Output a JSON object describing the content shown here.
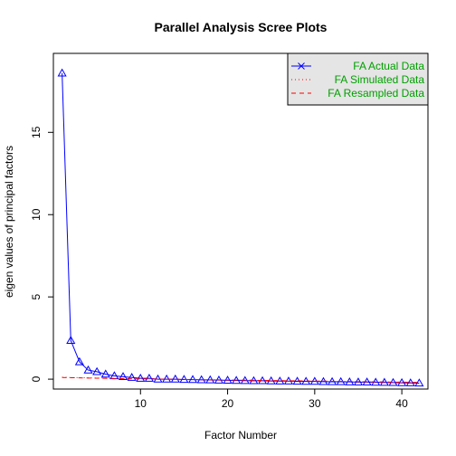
{
  "chart_data": {
    "type": "line",
    "title": "Parallel Analysis Scree Plots",
    "xlabel": "Factor Number",
    "ylabel": "eigen values of principal factors",
    "xlim": [
      0,
      43
    ],
    "ylim": [
      -0.6,
      19.8
    ],
    "x_ticks": [
      10,
      20,
      30,
      40
    ],
    "y_ticks": [
      0,
      5,
      10,
      15
    ],
    "grid": false,
    "legend_position": "top-right",
    "series": [
      {
        "name": "FA  Actual Data",
        "color": "#0000ff",
        "style": "solid-line-triangles",
        "x": [
          1,
          2,
          3,
          4,
          5,
          6,
          7,
          8,
          9,
          10,
          11,
          12,
          13,
          14,
          15,
          16,
          17,
          18,
          19,
          20,
          21,
          22,
          23,
          24,
          25,
          26,
          27,
          28,
          29,
          30,
          31,
          32,
          33,
          34,
          35,
          36,
          37,
          38,
          39,
          40,
          41,
          42
        ],
        "values": [
          18.6,
          2.35,
          1.05,
          0.55,
          0.45,
          0.3,
          0.2,
          0.15,
          0.1,
          0.05,
          0.05,
          0.0,
          0.0,
          0.0,
          -0.02,
          -0.03,
          -0.04,
          -0.05,
          -0.06,
          -0.07,
          -0.08,
          -0.09,
          -0.1,
          -0.1,
          -0.11,
          -0.12,
          -0.12,
          -0.13,
          -0.14,
          -0.14,
          -0.15,
          -0.16,
          -0.16,
          -0.17,
          -0.18,
          -0.18,
          -0.19,
          -0.2,
          -0.21,
          -0.22,
          -0.23,
          -0.24
        ]
      },
      {
        "name": "FA  Simulated Data",
        "color": "#ff0000",
        "style": "dotted",
        "x": [
          1,
          2,
          3,
          4,
          5,
          6,
          7,
          8,
          9,
          10,
          11,
          12,
          13,
          14,
          15,
          16,
          17,
          18,
          19,
          20,
          21,
          22,
          23,
          24,
          25,
          26,
          27,
          28,
          29,
          30,
          31,
          32,
          33,
          34,
          35,
          36,
          37,
          38,
          39,
          40,
          41,
          42
        ],
        "values": [
          0.12,
          0.1,
          0.09,
          0.08,
          0.07,
          0.06,
          0.05,
          0.04,
          0.03,
          0.02,
          0.02,
          0.01,
          0.0,
          -0.01,
          -0.01,
          -0.02,
          -0.03,
          -0.03,
          -0.04,
          -0.05,
          -0.05,
          -0.06,
          -0.07,
          -0.07,
          -0.08,
          -0.09,
          -0.09,
          -0.1,
          -0.11,
          -0.11,
          -0.12,
          -0.13,
          -0.13,
          -0.14,
          -0.15,
          -0.15,
          -0.16,
          -0.17,
          -0.17,
          -0.18,
          -0.19,
          -0.2
        ]
      },
      {
        "name": "FA  Resampled Data",
        "color": "#ff0000",
        "style": "dashed",
        "x": [
          1,
          2,
          3,
          4,
          5,
          6,
          7,
          8,
          9,
          10,
          11,
          12,
          13,
          14,
          15,
          16,
          17,
          18,
          19,
          20,
          21,
          22,
          23,
          24,
          25,
          26,
          27,
          28,
          29,
          30,
          31,
          32,
          33,
          34,
          35,
          36,
          37,
          38,
          39,
          40,
          41,
          42
        ],
        "values": [
          0.1,
          0.09,
          0.08,
          0.07,
          0.06,
          0.05,
          0.04,
          0.03,
          0.02,
          0.02,
          0.01,
          0.0,
          0.0,
          -0.01,
          -0.02,
          -0.02,
          -0.03,
          -0.04,
          -0.04,
          -0.05,
          -0.06,
          -0.06,
          -0.07,
          -0.08,
          -0.08,
          -0.09,
          -0.1,
          -0.1,
          -0.11,
          -0.12,
          -0.12,
          -0.13,
          -0.14,
          -0.14,
          -0.15,
          -0.16,
          -0.16,
          -0.17,
          -0.18,
          -0.18,
          -0.19,
          -0.2
        ]
      }
    ],
    "legend": {
      "background": "#e5e5e5",
      "text_color": "#00a000",
      "entries": [
        "FA  Actual Data",
        "FA  Simulated Data",
        "FA  Resampled Data"
      ]
    }
  }
}
